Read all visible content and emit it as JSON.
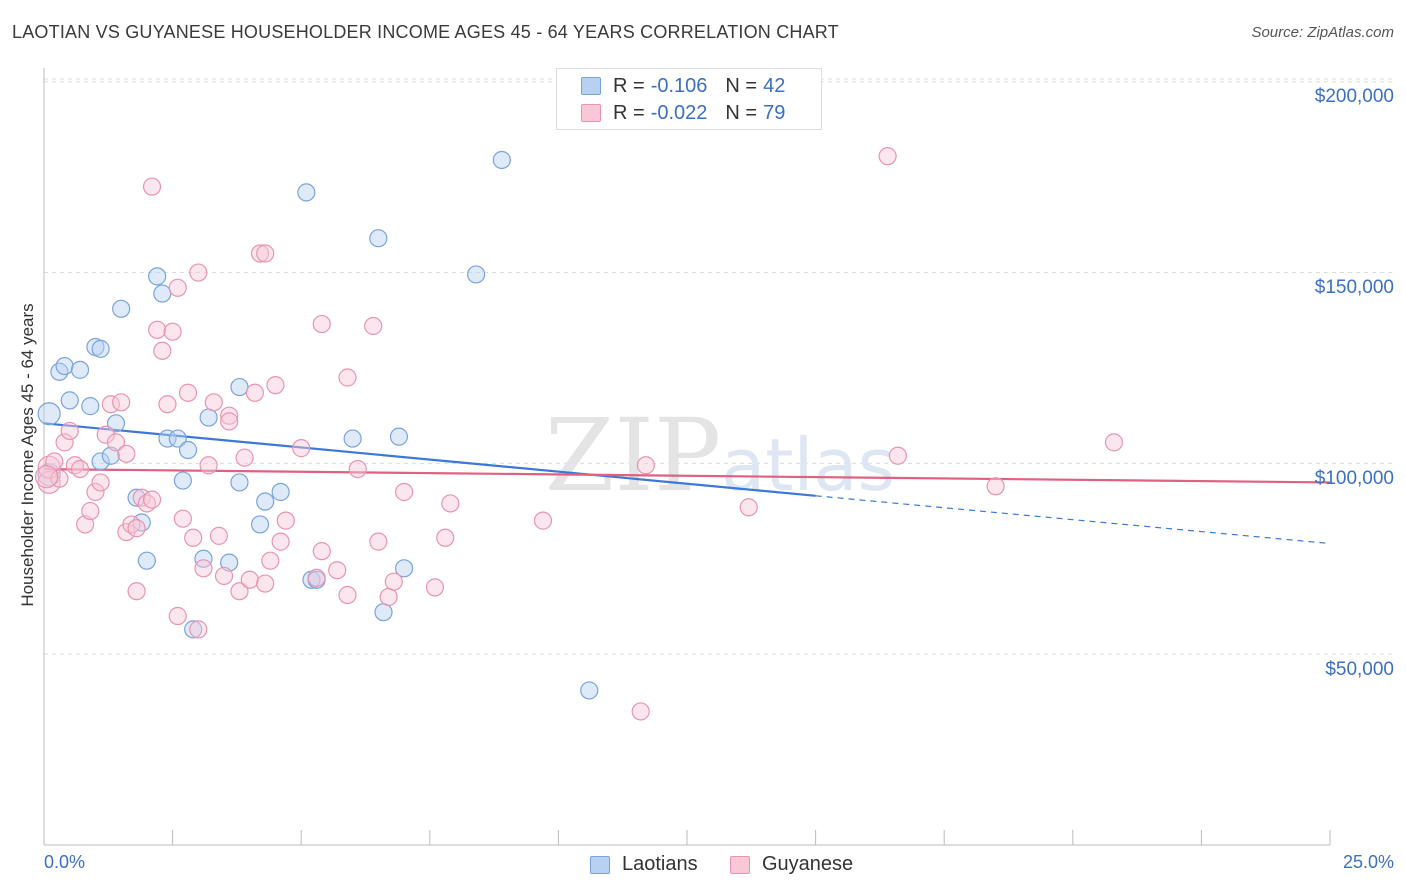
{
  "title": "LAOTIAN VS GUYANESE HOUSEHOLDER INCOME AGES 45 - 64 YEARS CORRELATION CHART",
  "source": "Source: ZipAtlas.com",
  "watermark": "ZIPatlas",
  "legend": {
    "rows": [
      {
        "r_label": "R =",
        "r_value": "-0.106",
        "n_label": "N =",
        "n_value": "42",
        "fill": "#b8d0f2",
        "stroke": "#7aa3dc"
      },
      {
        "r_label": "R =",
        "r_value": "-0.022",
        "n_label": "N =",
        "n_value": "79",
        "fill": "#f8c8d6",
        "stroke": "#e894b0"
      }
    ]
  },
  "bottom_legend": [
    {
      "label": "Laotians",
      "fill": "#b8d0f2",
      "stroke": "#7aa3dc"
    },
    {
      "label": "Guyanese",
      "fill": "#f8c8d6",
      "stroke": "#e894b0"
    }
  ],
  "chart_data": {
    "type": "scatter",
    "title": "LAOTIAN VS GUYANESE HOUSEHOLDER INCOME AGES 45 - 64 YEARS CORRELATION CHART",
    "xlabel": "",
    "ylabel": "Householder Income Ages 45 - 64 years",
    "xlim": [
      0,
      25
    ],
    "ylim": [
      0,
      210000
    ],
    "x_tick_labels": [
      "0.0%",
      "25.0%"
    ],
    "y_ticks": [
      50000,
      100000,
      150000,
      200000
    ],
    "y_tick_labels": [
      "$50,000",
      "$100,000",
      "$150,000",
      "$200,000"
    ],
    "grid": true,
    "legend_position": "top-center",
    "series": [
      {
        "name": "Laotians",
        "color": "#3b78d8",
        "fill": "#b8d0f2",
        "trend": {
          "x0": 0.0,
          "y0": 110500,
          "x1": 15.0,
          "y1": 91500,
          "dash_to_x": 25.0,
          "dash_to_y": 79000
        },
        "points": [
          [
            0.1,
            97000
          ],
          [
            0.1,
            113000
          ],
          [
            0.3,
            124000
          ],
          [
            0.4,
            125500
          ],
          [
            0.5,
            116500
          ],
          [
            0.7,
            124500
          ],
          [
            0.9,
            115000
          ],
          [
            1.0,
            130500
          ],
          [
            1.1,
            130000
          ],
          [
            1.1,
            100500
          ],
          [
            1.3,
            102000
          ],
          [
            1.4,
            110500
          ],
          [
            1.5,
            140500
          ],
          [
            1.8,
            91000
          ],
          [
            1.9,
            84500
          ],
          [
            2.0,
            74500
          ],
          [
            2.2,
            149000
          ],
          [
            2.3,
            144500
          ],
          [
            2.4,
            106500
          ],
          [
            2.6,
            106500
          ],
          [
            2.7,
            95500
          ],
          [
            2.8,
            103500
          ],
          [
            2.9,
            56500
          ],
          [
            3.1,
            75000
          ],
          [
            3.2,
            112000
          ],
          [
            3.6,
            74000
          ],
          [
            3.8,
            120000
          ],
          [
            3.8,
            95000
          ],
          [
            4.2,
            84000
          ],
          [
            4.3,
            90000
          ],
          [
            4.6,
            92500
          ],
          [
            5.1,
            171000
          ],
          [
            5.2,
            69500
          ],
          [
            5.3,
            69500
          ],
          [
            6.0,
            106500
          ],
          [
            6.5,
            159000
          ],
          [
            6.6,
            61000
          ],
          [
            6.9,
            107000
          ],
          [
            7.0,
            72500
          ],
          [
            8.4,
            149500
          ],
          [
            8.9,
            179500
          ],
          [
            10.6,
            40500
          ]
        ]
      },
      {
        "name": "Guyanese",
        "color": "#e0607f",
        "fill": "#f8c8d6",
        "trend": {
          "x0": 0.0,
          "y0": 98500,
          "x1": 25.0,
          "y1": 95000
        },
        "points": [
          [
            0.1,
            95000
          ],
          [
            0.1,
            99000
          ],
          [
            0.2,
            100500
          ],
          [
            0.3,
            96000
          ],
          [
            0.4,
            105500
          ],
          [
            0.5,
            108500
          ],
          [
            0.6,
            99500
          ],
          [
            0.7,
            98500
          ],
          [
            0.8,
            84000
          ],
          [
            0.9,
            87500
          ],
          [
            1.0,
            92500
          ],
          [
            1.1,
            95000
          ],
          [
            1.2,
            107500
          ],
          [
            1.3,
            115500
          ],
          [
            1.4,
            105500
          ],
          [
            1.5,
            116000
          ],
          [
            1.6,
            102500
          ],
          [
            1.6,
            82000
          ],
          [
            1.7,
            84000
          ],
          [
            1.8,
            83000
          ],
          [
            1.8,
            66500
          ],
          [
            1.9,
            91000
          ],
          [
            2.0,
            89500
          ],
          [
            2.1,
            172500
          ],
          [
            2.1,
            90500
          ],
          [
            2.2,
            135000
          ],
          [
            2.3,
            129500
          ],
          [
            2.4,
            115500
          ],
          [
            2.5,
            134500
          ],
          [
            2.6,
            146000
          ],
          [
            2.6,
            60000
          ],
          [
            2.7,
            85500
          ],
          [
            2.8,
            118500
          ],
          [
            2.9,
            80500
          ],
          [
            3.0,
            56500
          ],
          [
            3.0,
            150000
          ],
          [
            3.1,
            72500
          ],
          [
            3.2,
            99500
          ],
          [
            3.3,
            116000
          ],
          [
            3.4,
            81000
          ],
          [
            3.5,
            70500
          ],
          [
            3.6,
            112500
          ],
          [
            3.6,
            111000
          ],
          [
            3.8,
            66500
          ],
          [
            3.9,
            101500
          ],
          [
            4.0,
            69500
          ],
          [
            4.1,
            118500
          ],
          [
            4.2,
            155000
          ],
          [
            4.3,
            68500
          ],
          [
            4.3,
            155000
          ],
          [
            4.4,
            74500
          ],
          [
            4.5,
            120500
          ],
          [
            4.6,
            79500
          ],
          [
            4.7,
            85000
          ],
          [
            5.0,
            104000
          ],
          [
            5.3,
            70000
          ],
          [
            5.4,
            77000
          ],
          [
            5.4,
            136500
          ],
          [
            5.7,
            72000
          ],
          [
            5.9,
            122500
          ],
          [
            5.9,
            65500
          ],
          [
            6.1,
            98500
          ],
          [
            6.4,
            136000
          ],
          [
            6.5,
            79500
          ],
          [
            6.7,
            65000
          ],
          [
            6.8,
            69000
          ],
          [
            7.0,
            92500
          ],
          [
            7.6,
            67500
          ],
          [
            7.8,
            80500
          ],
          [
            7.9,
            89500
          ],
          [
            9.7,
            85000
          ],
          [
            11.6,
            35000
          ],
          [
            11.7,
            99500
          ],
          [
            13.7,
            88500
          ],
          [
            16.4,
            180500
          ],
          [
            16.6,
            102000
          ],
          [
            18.5,
            94000
          ],
          [
            20.8,
            105500
          ],
          [
            0.05,
            96500
          ]
        ]
      }
    ]
  }
}
